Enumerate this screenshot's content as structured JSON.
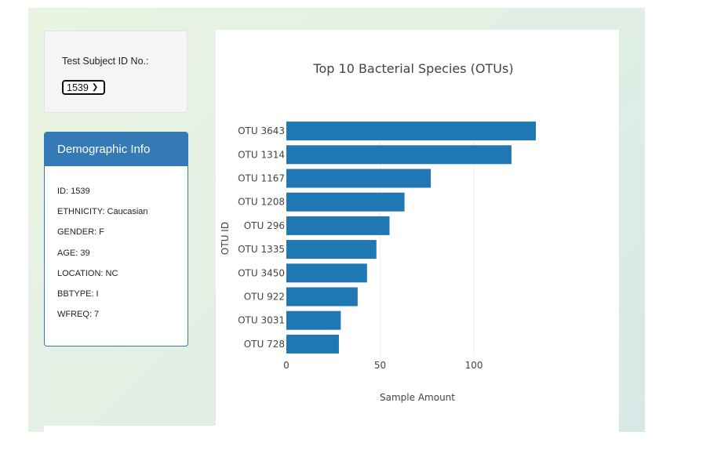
{
  "selector": {
    "label": "Test Subject ID No.:",
    "selected": "1539"
  },
  "demographics": {
    "title": "Demographic Info",
    "rows": [
      "ID: 1539",
      "ETHNICITY: Caucasian",
      "GENDER: F",
      "AGE: 39",
      "LOCATION: NC",
      "BBTYPE: I",
      "WFREQ: 7"
    ]
  },
  "colors": {
    "bar": "#1f77b4",
    "panel": "#337ab7"
  },
  "chart_data": {
    "type": "bar",
    "orientation": "horizontal",
    "title": "Top 10 Bacterial Species (OTUs)",
    "xlabel": "Sample Amount",
    "ylabel": "OTU ID",
    "categories": [
      "OTU 3643",
      "OTU 1314",
      "OTU 1167",
      "OTU 1208",
      "OTU 296",
      "OTU 1335",
      "OTU 3450",
      "OTU 922",
      "OTU 3031",
      "OTU 728"
    ],
    "values": [
      133,
      120,
      77,
      63,
      55,
      48,
      43,
      38,
      29,
      28
    ],
    "xlim": [
      0,
      133
    ],
    "xticks": [
      0,
      50,
      100
    ],
    "grid": true
  }
}
